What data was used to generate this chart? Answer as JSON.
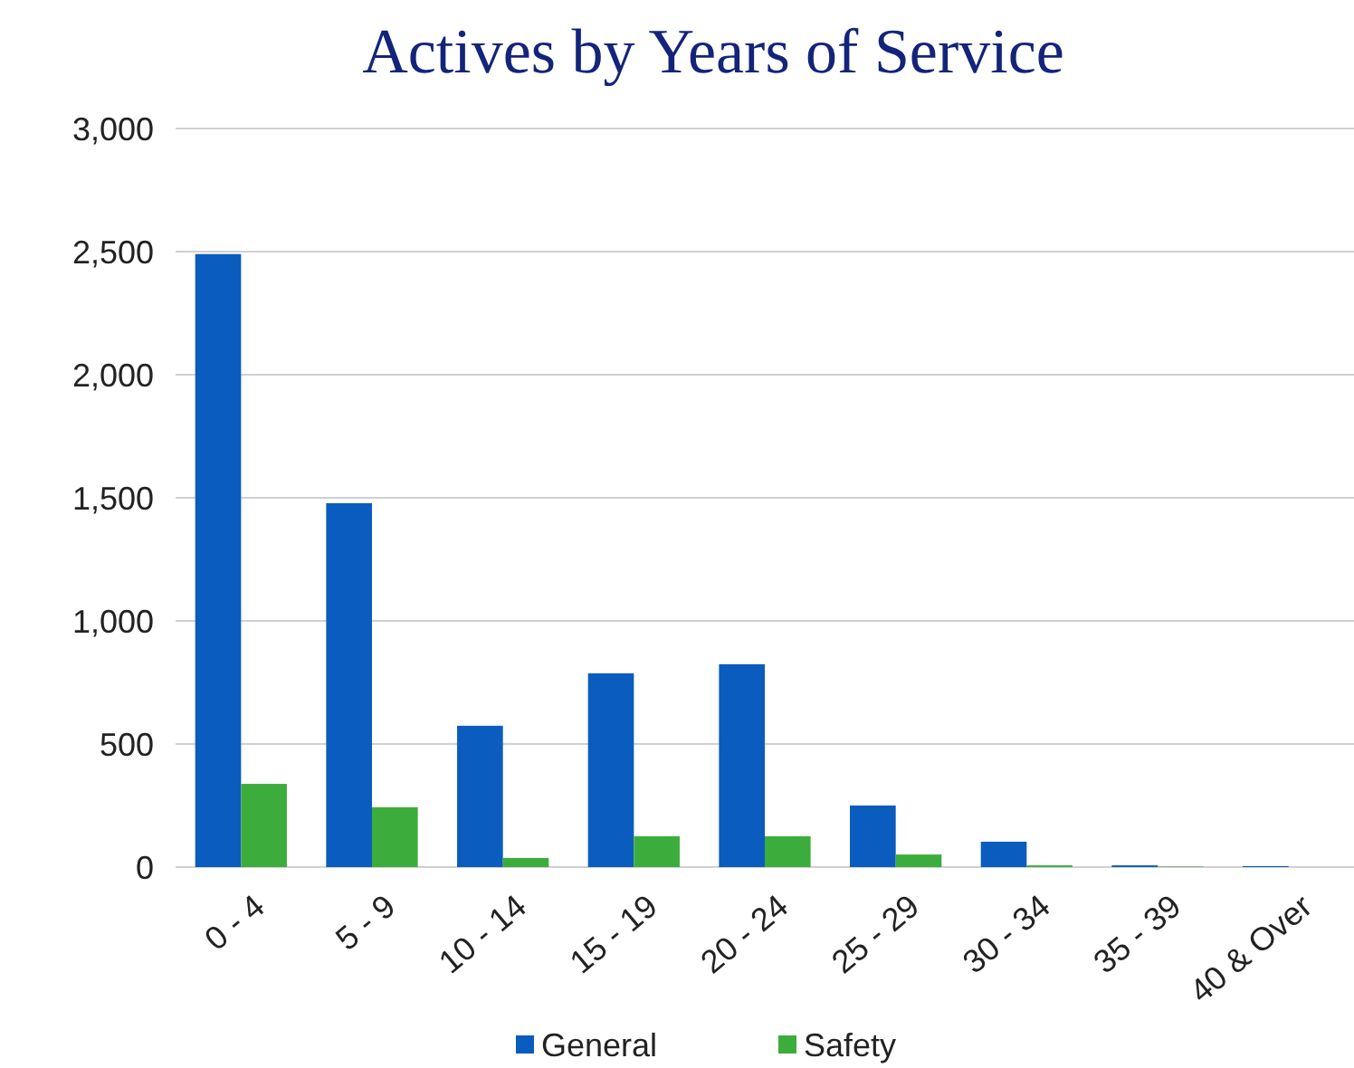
{
  "chart_data": {
    "type": "bar",
    "title": "Actives by Years of Service",
    "categories": [
      "0 - 4",
      "5 - 9",
      "10 - 14",
      "15 - 19",
      "20 - 24",
      "25 - 29",
      "30 - 34",
      "35 - 39",
      "40 & Over"
    ],
    "series": [
      {
        "name": "General",
        "color": "#0a5cbe",
        "values": [
          2490,
          1478,
          574,
          787,
          824,
          250,
          103,
          7,
          4
        ]
      },
      {
        "name": "Safety",
        "color": "#3cad3c",
        "values": [
          338,
          243,
          37,
          125,
          125,
          51,
          7,
          2,
          null
        ]
      }
    ],
    "ylim": [
      0,
      3000
    ],
    "yticks": [
      {
        "value": 0,
        "label": "0"
      },
      {
        "value": 500,
        "label": "500"
      },
      {
        "value": 1000,
        "label": "1,000"
      },
      {
        "value": 1500,
        "label": "1,500"
      },
      {
        "value": 2000,
        "label": "2,000"
      },
      {
        "value": 2500,
        "label": "2,500"
      },
      {
        "value": 3000,
        "label": "3,000"
      }
    ],
    "grid": "y",
    "legend": "bottom"
  }
}
